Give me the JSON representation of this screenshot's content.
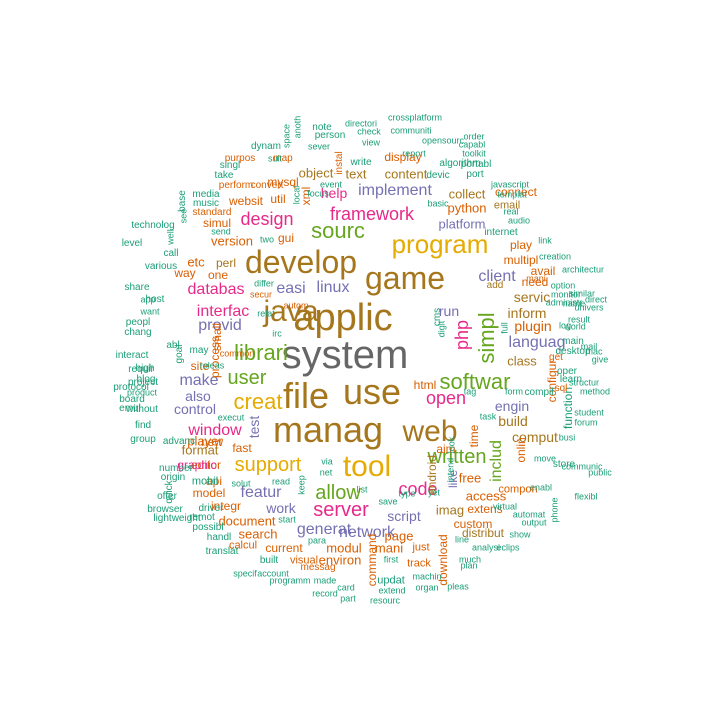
{
  "palette": {
    "gray": "#666666",
    "gold": "#a6761d",
    "yellow": "#e6ab02",
    "green": "#66a61e",
    "pink": "#e7298a",
    "purple": "#7570b3",
    "orange": "#d95f02",
    "teal": "#1b9e77"
  },
  "words": [
    "system",
    "applic",
    "file",
    "java",
    "use",
    "manag",
    "game",
    "develop",
    "program",
    "web",
    "tool",
    "softwar",
    "librari",
    "creat",
    "support",
    "user",
    "sourc",
    "simpl",
    "written",
    "server",
    "allow",
    "design",
    "framework",
    "code",
    "php",
    "includ",
    "open",
    "window",
    "featur",
    "interfac",
    "databas",
    "linux",
    "easi",
    "implement",
    "provid",
    "make",
    "client",
    "languag",
    "control",
    "generat",
    "network",
    "help",
    "script",
    "engin",
    "build",
    "inform",
    "servic",
    "also",
    "plugin",
    "run",
    "class",
    "test",
    "comput",
    "access",
    "imag",
    "python",
    "platform",
    "free",
    "collect",
    "format",
    "editor",
    "player",
    "version",
    "custom",
    "websit",
    "xml",
    "text",
    "object",
    "mysql",
    "content",
    "display",
    "android",
    "download",
    "process",
    "command",
    "page",
    "modul",
    "mani",
    "environ",
    "search",
    "document",
    "integr",
    "model",
    "api",
    "graphic",
    "etc",
    "small",
    "util",
    "gui",
    "perl",
    "simul",
    "one",
    "way",
    "site",
    "new",
    "time",
    "like",
    "onlin",
    "configur",
    "aim",
    "html",
    "cms",
    "need",
    "avail",
    "add",
    "multipl",
    "play",
    "email",
    "connect",
    "distribut",
    "extens",
    "function",
    "compon",
    "just",
    "current",
    "track",
    "updat",
    "messag",
    "visual",
    "built",
    "work",
    "may",
    "fast",
    "possibl",
    "mobil",
    "calcul",
    "remot",
    "interact",
    "project",
    "high",
    "share",
    "host",
    "chang",
    "peopl",
    "goal",
    "various",
    "call",
    "level",
    "technolog",
    "base",
    "media",
    "music",
    "standard",
    "perform",
    "convert",
    "map",
    "purpos",
    "singl",
    "take",
    "dynam",
    "space",
    "anoth",
    "note",
    "person",
    "sever",
    "focus",
    "local",
    "instal",
    "event",
    "write",
    "check",
    "view",
    "directori",
    "communiti",
    "report",
    "opensourc",
    "crossplatform",
    "capabl",
    "toolkit",
    "order",
    "algorithm",
    "devic",
    "port",
    "portabl",
    "javascript",
    "templat",
    "real",
    "audio",
    "internet",
    "basic",
    "link",
    "creation",
    "architectur",
    "option",
    "similar",
    "administr",
    "name",
    "result",
    "univers",
    "direct",
    "world",
    "monitor",
    "desktop",
    "main",
    "log",
    "mac",
    "mail",
    "give",
    "method",
    "structur",
    "student",
    "forum",
    "busi",
    "communic",
    "enabl",
    "public",
    "flexibl",
    "phone",
    "automat",
    "store",
    "learn",
    "oper",
    "get",
    "sql",
    "compil",
    "form",
    "tag",
    "task",
    "look",
    "digit",
    "full",
    "relat",
    "differ",
    "secur",
    "autom",
    "irc",
    "abl",
    "releas",
    "execut",
    "requir",
    "blog",
    "protocol",
    "board",
    "without",
    "emul",
    "find",
    "group",
    "advanc",
    "number",
    "origin",
    "quick",
    "offer",
    "browser",
    "lightweight",
    "translat",
    "handl",
    "driver",
    "specif",
    "account",
    "programm",
    "made",
    "record",
    "card",
    "part",
    "para",
    "extend",
    "resourc",
    "machin",
    "organ",
    "first",
    "pleas",
    "plan",
    "much",
    "show",
    "analysi",
    "eclips",
    "output",
    "line",
    "virtual",
    "yet",
    "save",
    "type",
    "list",
    "via",
    "net",
    "keep",
    "read",
    "start",
    "solut",
    "suit",
    "send",
    "two",
    "see",
    "well",
    "app",
    "want",
    "product",
    "common",
    "move",
    "mani",
    "intend",
    "mod",
    "tri"
  ]
}
